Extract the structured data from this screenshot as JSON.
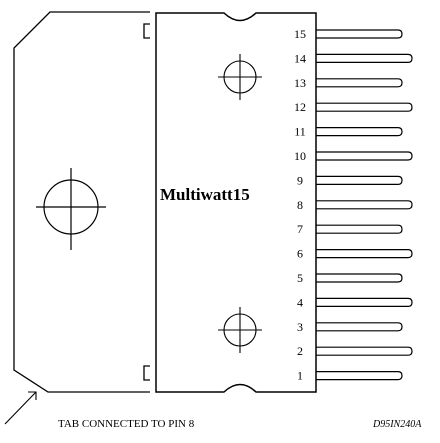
{
  "package_name": "Multiwatt15",
  "pin_numbers": [
    "15",
    "14",
    "13",
    "12",
    "11",
    "10",
    "9",
    "8",
    "7",
    "6",
    "5",
    "4",
    "3",
    "2",
    "1"
  ],
  "tab_note": "TAB CONNECTED TO PIN 8",
  "drawing_code": "D95IN240A",
  "colors": {
    "line": "#000000",
    "background": "#ffffff"
  }
}
